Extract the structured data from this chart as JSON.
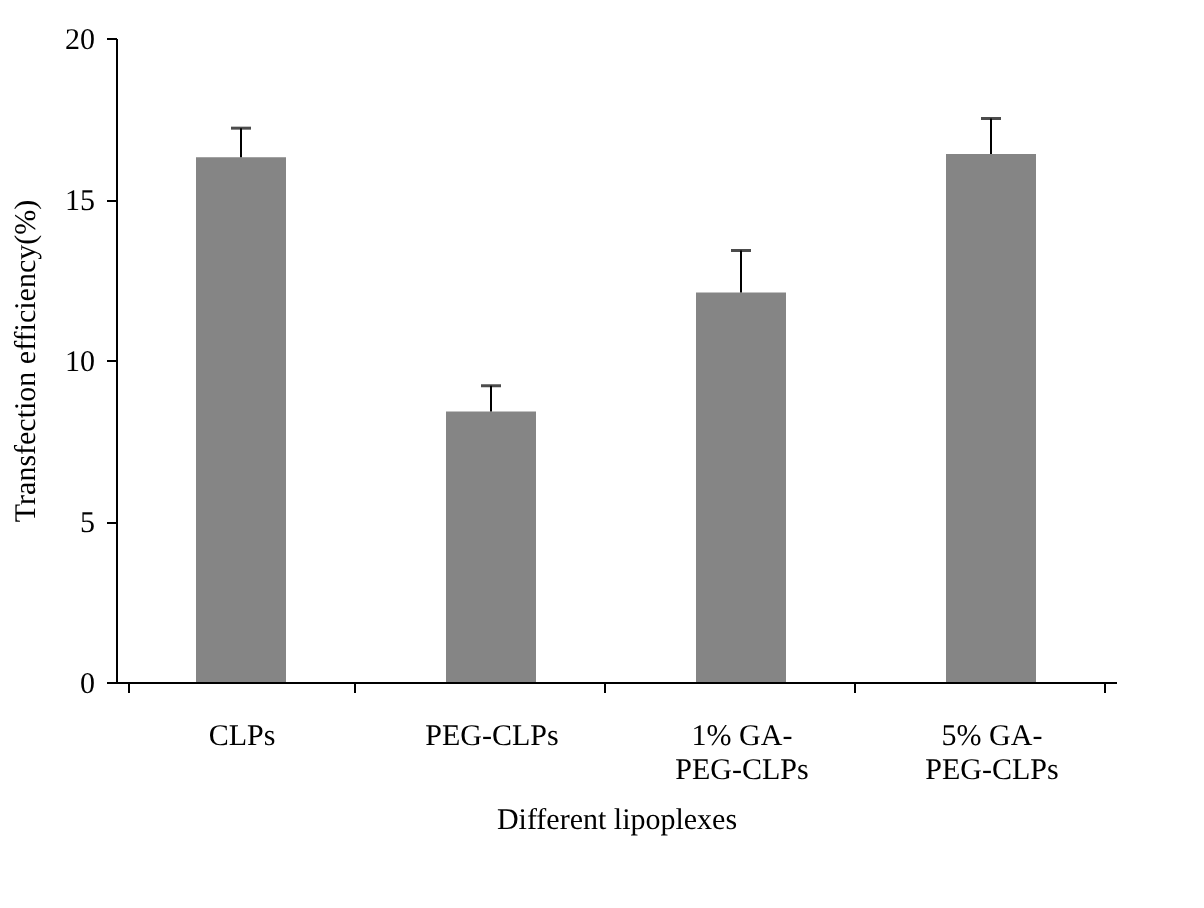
{
  "chart_data": {
    "type": "bar",
    "xlabel": "Different lipoplexes",
    "ylabel": "Transfection efficiency(%)",
    "categories": [
      "CLPs",
      "PEG-CLPs",
      "1% GA-\nPEG-CLPs",
      "5% GA-\nPEG-CLPs"
    ],
    "values": [
      16.3,
      8.4,
      12.1,
      16.4
    ],
    "color": "#858585",
    "errors": [
      [
        16.3,
        17.2
      ],
      [
        8.4,
        9.2
      ],
      [
        12.1,
        13.4
      ],
      [
        16.4,
        17.5
      ]
    ],
    "ylim": [
      0,
      20
    ],
    "yticks": [
      0,
      5,
      10,
      15,
      20
    ],
    "grid": false
  }
}
